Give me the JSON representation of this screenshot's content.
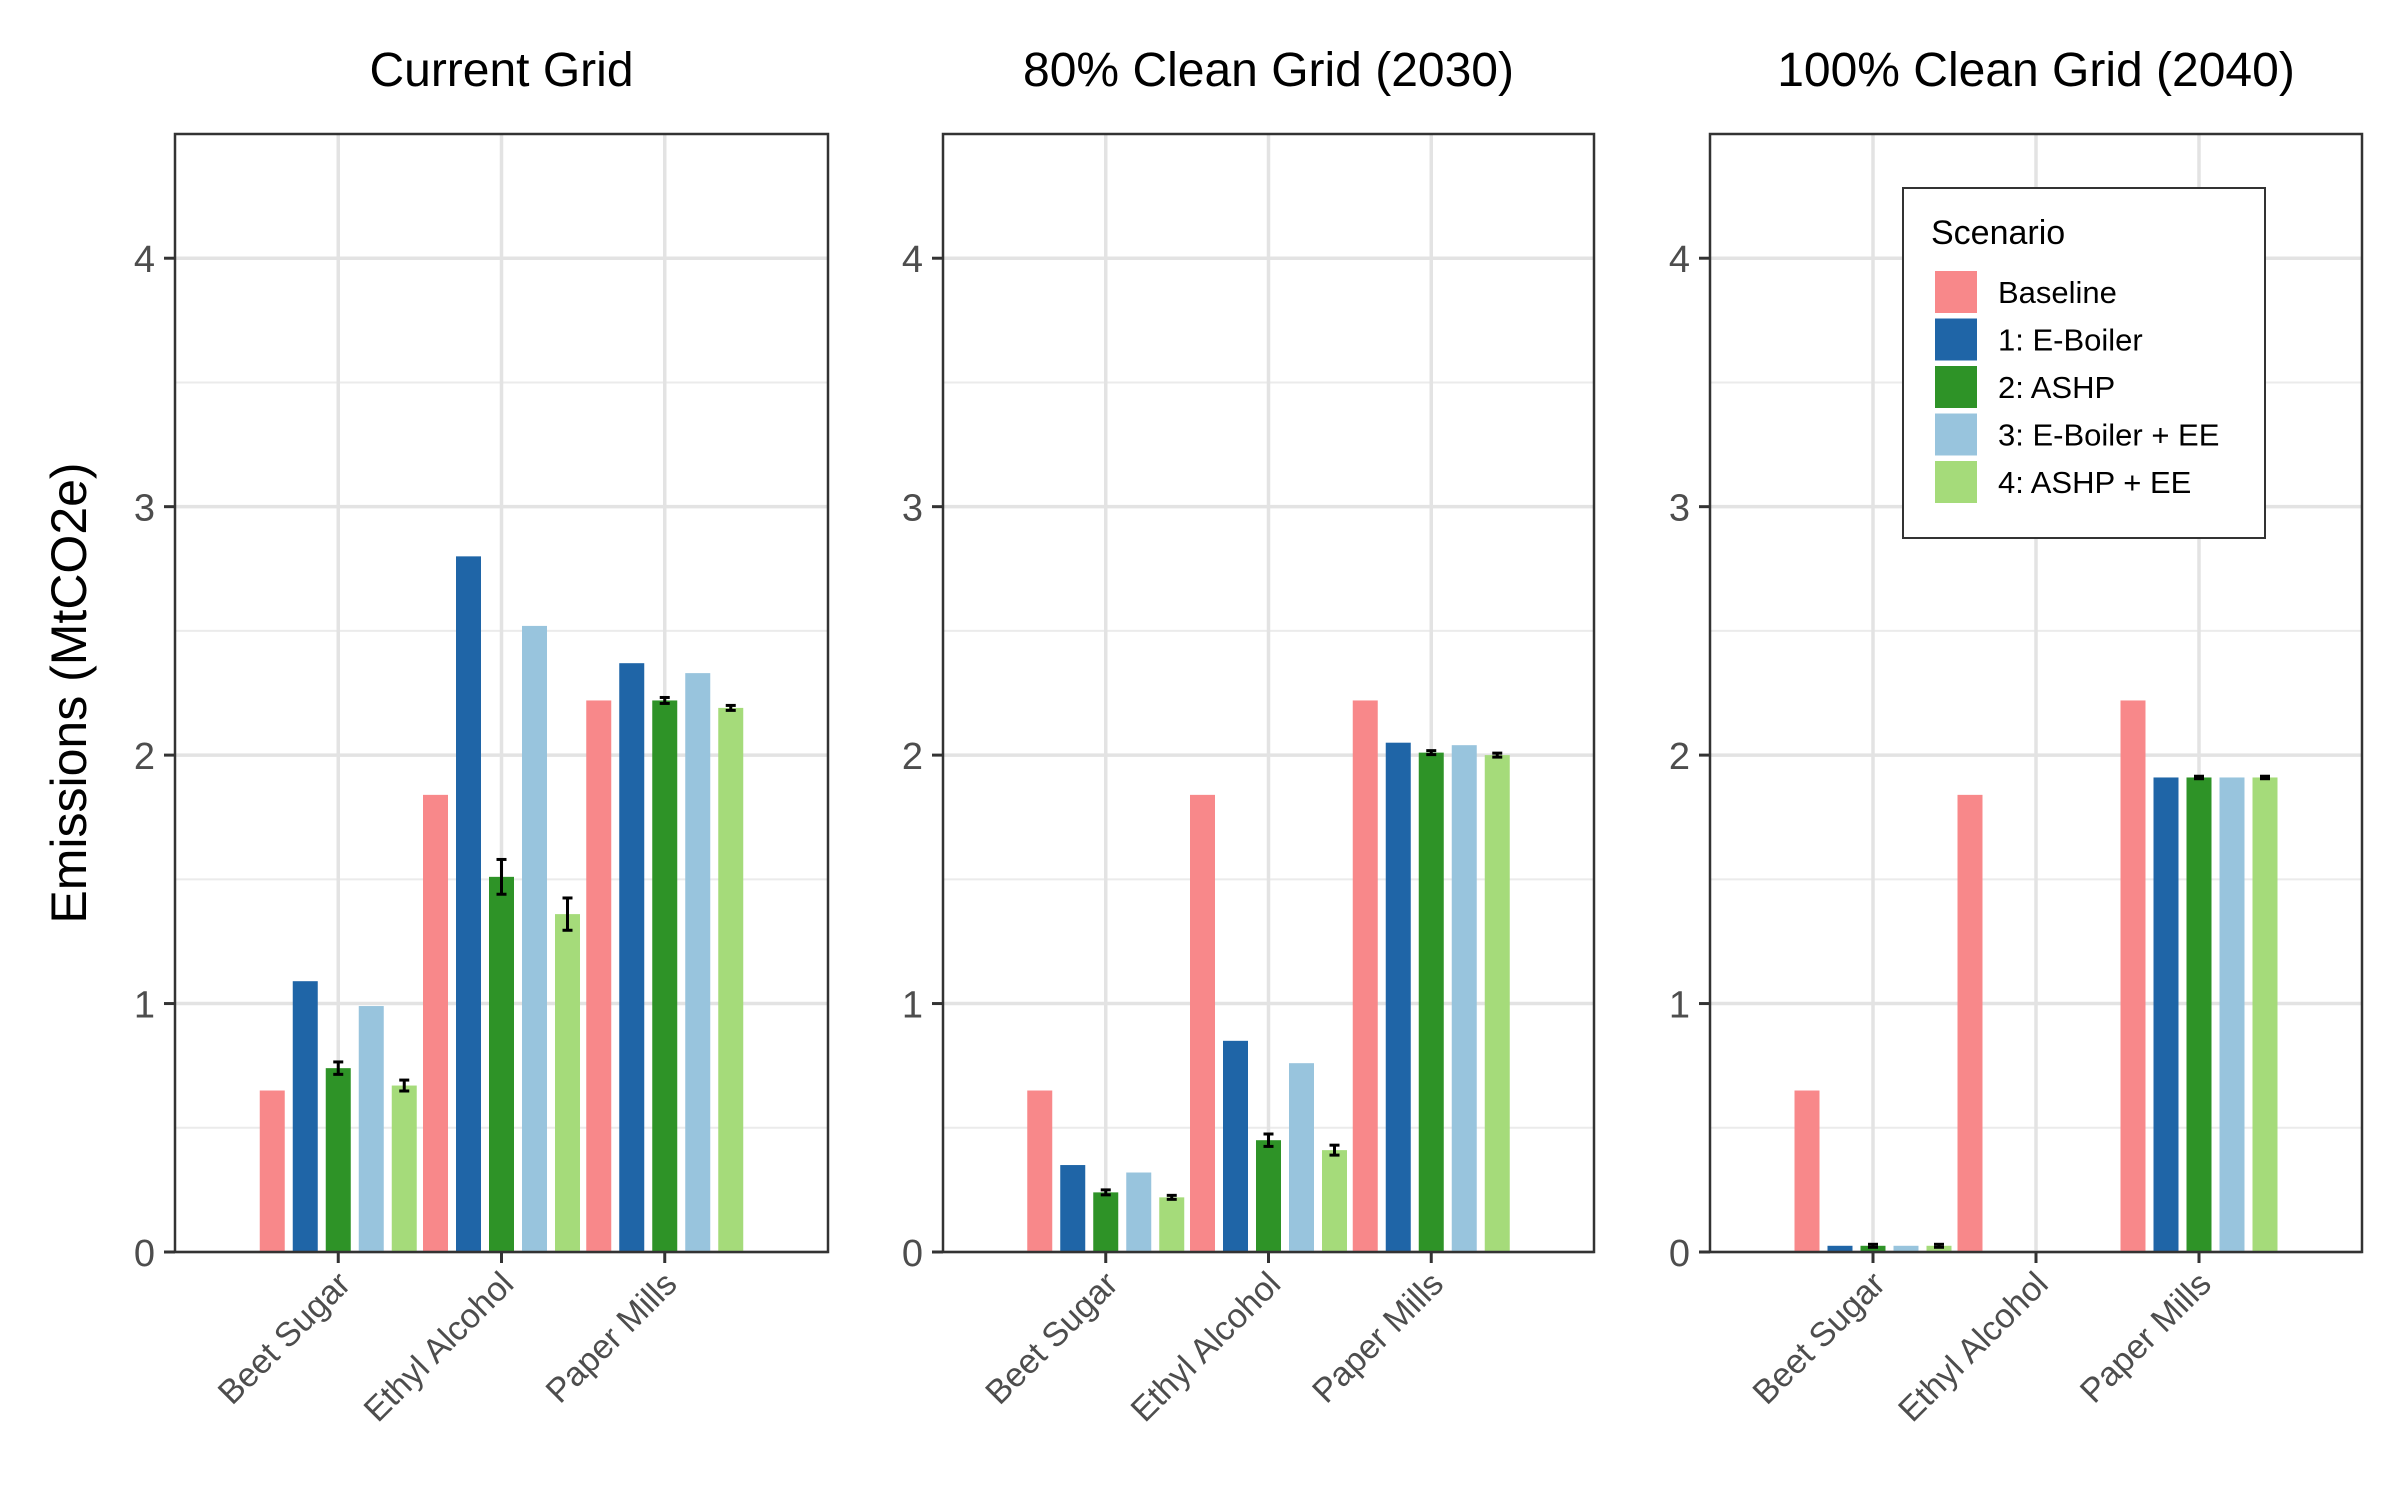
{
  "chart_data": {
    "type": "bar",
    "ylabel": "Emissions (MtCO2e)",
    "ylim": [
      0,
      4.5
    ],
    "yticks": [
      0,
      1,
      2,
      3,
      4
    ],
    "grid": true,
    "categories": [
      "Beet Sugar",
      "Ethyl Alcohol",
      "Paper Mills"
    ],
    "legend": {
      "title": "Scenario",
      "placement": "top-right of third panel",
      "items": [
        {
          "name": "Baseline",
          "color": "#F8888A"
        },
        {
          "name": "1: E-Boiler",
          "color": "#1F65A7"
        },
        {
          "name": "2: ASHP",
          "color": "#2E9327"
        },
        {
          "name": "3: E-Boiler + EE",
          "color": "#98C4DD"
        },
        {
          "name": "4: ASHP + EE",
          "color": "#A5DB7A"
        }
      ]
    },
    "panels": [
      {
        "title": "Current Grid",
        "series": [
          {
            "name": "Baseline",
            "values": [
              0.65,
              1.84,
              2.22
            ]
          },
          {
            "name": "1: E-Boiler",
            "values": [
              1.09,
              2.8,
              2.37
            ]
          },
          {
            "name": "2: ASHP",
            "values": [
              0.74,
              1.51,
              2.22
            ],
            "errors": [
              0.025,
              0.07,
              0.012
            ]
          },
          {
            "name": "3: E-Boiler + EE",
            "values": [
              0.99,
              2.52,
              2.33
            ]
          },
          {
            "name": "4: ASHP + EE",
            "values": [
              0.67,
              1.36,
              2.19
            ],
            "errors": [
              0.022,
              0.065,
              0.01
            ]
          }
        ]
      },
      {
        "title": "80% Clean Grid (2030)",
        "series": [
          {
            "name": "Baseline",
            "values": [
              0.65,
              1.84,
              2.22
            ]
          },
          {
            "name": "1: E-Boiler",
            "values": [
              0.35,
              0.85,
              2.05
            ]
          },
          {
            "name": "2: ASHP",
            "values": [
              0.24,
              0.45,
              2.01
            ],
            "errors": [
              0.01,
              0.025,
              0.008
            ]
          },
          {
            "name": "3: E-Boiler + EE",
            "values": [
              0.32,
              0.76,
              2.04
            ]
          },
          {
            "name": "4: ASHP + EE",
            "values": [
              0.22,
              0.41,
              2.0
            ],
            "errors": [
              0.008,
              0.02,
              0.008
            ]
          }
        ]
      },
      {
        "title": "100% Clean Grid (2040)",
        "series": [
          {
            "name": "Baseline",
            "values": [
              0.65,
              1.84,
              2.22
            ]
          },
          {
            "name": "1: E-Boiler",
            "values": [
              0.025,
              0,
              1.91
            ]
          },
          {
            "name": "2: ASHP",
            "values": [
              0.025,
              0,
              1.91
            ],
            "errors": [
              0.006,
              0,
              0.005
            ]
          },
          {
            "name": "3: E-Boiler + EE",
            "values": [
              0.025,
              0,
              1.91
            ]
          },
          {
            "name": "4: ASHP + EE",
            "values": [
              0.025,
              0,
              1.91
            ],
            "errors": [
              0.006,
              0,
              0.005
            ]
          }
        ]
      }
    ]
  }
}
